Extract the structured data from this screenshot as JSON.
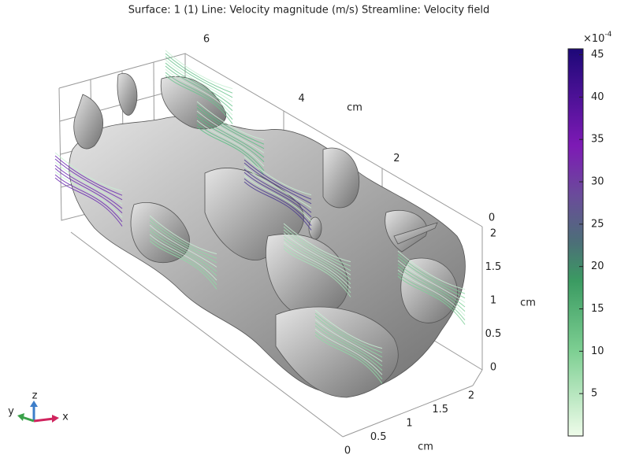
{
  "title": "Surface: 1 (1)  Line: Velocity magnitude (m/s)  Streamline: Velocity field",
  "axes": {
    "x": {
      "label": "cm",
      "lim": [
        0,
        6
      ],
      "ticks": [
        6,
        4,
        2,
        0
      ]
    },
    "y": {
      "label": "cm",
      "lim": [
        0,
        2
      ],
      "ticks": [
        2,
        1.5,
        1,
        0.5,
        0
      ]
    },
    "z": {
      "label": "cm",
      "lim": [
        0,
        2
      ],
      "ticks": [
        2,
        1.5,
        1,
        0.5,
        0
      ]
    }
  },
  "colorbar": {
    "exponent": {
      "base": "×10",
      "power": "-4"
    },
    "lim": [
      0,
      45.7
    ],
    "ticks": [
      45,
      40,
      35,
      30,
      25,
      20,
      15,
      10,
      5
    ]
  },
  "triad": {
    "z": "z",
    "y": "y",
    "x": "x"
  }
}
